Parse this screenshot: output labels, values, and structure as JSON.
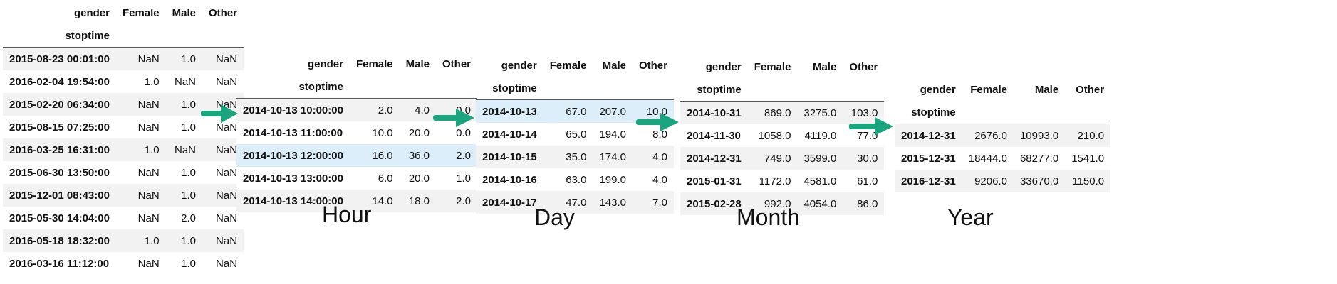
{
  "raw": {
    "columns_label": "gender",
    "columns": [
      "Female",
      "Male",
      "Other"
    ],
    "index_label": "stoptime",
    "rows": [
      {
        "index": "2015-08-23 00:01:00",
        "values": [
          "NaN",
          "1.0",
          "NaN"
        ]
      },
      {
        "index": "2016-02-04 19:54:00",
        "values": [
          "1.0",
          "NaN",
          "NaN"
        ]
      },
      {
        "index": "2015-02-20 06:34:00",
        "values": [
          "NaN",
          "1.0",
          "NaN"
        ]
      },
      {
        "index": "2015-08-15 07:25:00",
        "values": [
          "NaN",
          "1.0",
          "NaN"
        ]
      },
      {
        "index": "2016-03-25 16:31:00",
        "values": [
          "1.0",
          "NaN",
          "NaN"
        ]
      },
      {
        "index": "2015-06-30 13:50:00",
        "values": [
          "NaN",
          "1.0",
          "NaN"
        ]
      },
      {
        "index": "2015-12-01 08:43:00",
        "values": [
          "NaN",
          "1.0",
          "NaN"
        ]
      },
      {
        "index": "2015-05-30 14:04:00",
        "values": [
          "NaN",
          "2.0",
          "NaN"
        ]
      },
      {
        "index": "2016-05-18 18:32:00",
        "values": [
          "1.0",
          "1.0",
          "NaN"
        ]
      },
      {
        "index": "2016-03-16 11:12:00",
        "values": [
          "NaN",
          "1.0",
          "NaN"
        ]
      }
    ]
  },
  "hour": {
    "caption": "Hour",
    "columns_label": "gender",
    "columns": [
      "Female",
      "Male",
      "Other"
    ],
    "index_label": "stoptime",
    "rows": [
      {
        "index": "2014-10-13 10:00:00",
        "values": [
          "2.0",
          "4.0",
          "0.0"
        ]
      },
      {
        "index": "2014-10-13 11:00:00",
        "values": [
          "10.0",
          "20.0",
          "0.0"
        ]
      },
      {
        "index": "2014-10-13 12:00:00",
        "values": [
          "16.0",
          "36.0",
          "2.0"
        ]
      },
      {
        "index": "2014-10-13 13:00:00",
        "values": [
          "6.0",
          "20.0",
          "1.0"
        ]
      },
      {
        "index": "2014-10-13 14:00:00",
        "values": [
          "14.0",
          "18.0",
          "2.0"
        ]
      }
    ]
  },
  "day": {
    "caption": "Day",
    "columns_label": "gender",
    "columns": [
      "Female",
      "Male",
      "Other"
    ],
    "index_label": "stoptime",
    "rows": [
      {
        "index": "2014-10-13",
        "values": [
          "67.0",
          "207.0",
          "10.0"
        ]
      },
      {
        "index": "2014-10-14",
        "values": [
          "65.0",
          "194.0",
          "8.0"
        ]
      },
      {
        "index": "2014-10-15",
        "values": [
          "35.0",
          "174.0",
          "4.0"
        ]
      },
      {
        "index": "2014-10-16",
        "values": [
          "63.0",
          "199.0",
          "4.0"
        ]
      },
      {
        "index": "2014-10-17",
        "values": [
          "47.0",
          "143.0",
          "7.0"
        ]
      }
    ]
  },
  "month": {
    "caption": "Month",
    "columns_label": "gender",
    "columns": [
      "Female",
      "Male",
      "Other"
    ],
    "index_label": "stoptime",
    "rows": [
      {
        "index": "2014-10-31",
        "values": [
          "869.0",
          "3275.0",
          "103.0"
        ]
      },
      {
        "index": "2014-11-30",
        "values": [
          "1058.0",
          "4119.0",
          "77.0"
        ]
      },
      {
        "index": "2014-12-31",
        "values": [
          "749.0",
          "3599.0",
          "30.0"
        ]
      },
      {
        "index": "2015-01-31",
        "values": [
          "1172.0",
          "4581.0",
          "61.0"
        ]
      },
      {
        "index": "2015-02-28",
        "values": [
          "992.0",
          "4054.0",
          "86.0"
        ]
      }
    ]
  },
  "year": {
    "caption": "Year",
    "columns_label": "gender",
    "columns": [
      "Female",
      "Male",
      "Other"
    ],
    "index_label": "stoptime",
    "rows": [
      {
        "index": "2014-12-31",
        "values": [
          "2676.0",
          "10993.0",
          "210.0"
        ]
      },
      {
        "index": "2015-12-31",
        "values": [
          "18444.0",
          "68277.0",
          "1541.0"
        ]
      },
      {
        "index": "2016-12-31",
        "values": [
          "9206.0",
          "33670.0",
          "1150.0"
        ]
      }
    ]
  },
  "colors": {
    "arrow": "#1aa57f",
    "row_stripe": "#f2f2f2",
    "row_highlight": "#dbeefa"
  }
}
